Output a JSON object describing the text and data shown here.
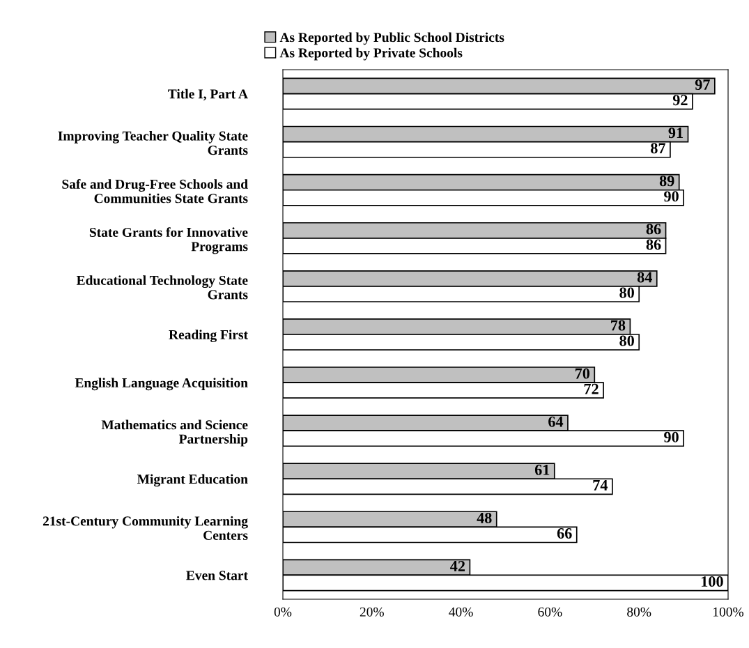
{
  "chart_data": {
    "type": "bar",
    "orientation": "horizontal",
    "categories": [
      "Title I, Part A",
      "Improving Teacher Quality State\nGrants",
      "Safe and Drug-Free Schools and\nCommunities State Grants",
      "State Grants for Innovative\nPrograms",
      "Educational Technology State\nGrants",
      "Reading First",
      "English Language Acquisition",
      "Mathematics and Science\nPartnership",
      "Migrant Education",
      "21st-Century Community Learning\nCenters",
      "Even Start"
    ],
    "series": [
      {
        "name": "As Reported by Public School Districts",
        "color": "#c0c0c0",
        "values": [
          97,
          91,
          89,
          86,
          84,
          78,
          70,
          64,
          61,
          48,
          42
        ]
      },
      {
        "name": "As Reported by Private Schools",
        "color": "#ffffff",
        "values": [
          92,
          87,
          90,
          86,
          80,
          80,
          72,
          90,
          74,
          66,
          100
        ]
      }
    ],
    "xlim": [
      0,
      100
    ],
    "xticks": [
      {
        "value": 0,
        "label": "0%"
      },
      {
        "value": 20,
        "label": "20%"
      },
      {
        "value": 40,
        "label": "40%"
      },
      {
        "value": 60,
        "label": "60%"
      },
      {
        "value": 80,
        "label": "80%"
      },
      {
        "value": 100,
        "label": "100%"
      }
    ],
    "data_labels": true,
    "legend": "top",
    "grid": false
  }
}
